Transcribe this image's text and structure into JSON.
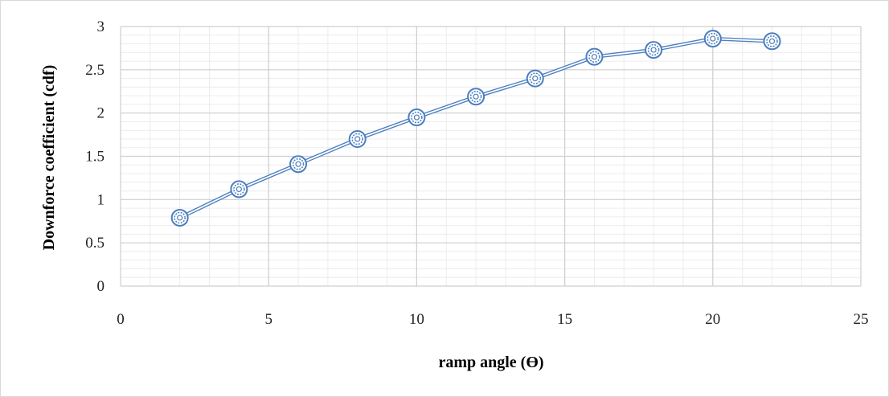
{
  "chart_data": {
    "type": "scatter",
    "title": "",
    "xlabel": "ramp angle (Ɵ)",
    "ylabel": "Downforce coefficient (cdf)",
    "xlim": [
      0,
      25
    ],
    "ylim": [
      0,
      3
    ],
    "x_ticks": [
      "0",
      "5",
      "10",
      "15",
      "20",
      "25"
    ],
    "y_ticks": [
      "0",
      "0.5",
      "1",
      "1.5",
      "2",
      "2.5",
      "3"
    ],
    "grid": true,
    "legend": "none",
    "series": [
      {
        "x": [
          2,
          4,
          6,
          8,
          10,
          12,
          14,
          16,
          18,
          20,
          22
        ],
        "y": [
          0.79,
          1.12,
          1.41,
          1.7,
          1.95,
          2.19,
          2.4,
          2.65,
          2.73,
          2.86,
          2.83
        ],
        "color": "#4a7ebf",
        "marker": "double-circle",
        "line": "double"
      }
    ]
  }
}
